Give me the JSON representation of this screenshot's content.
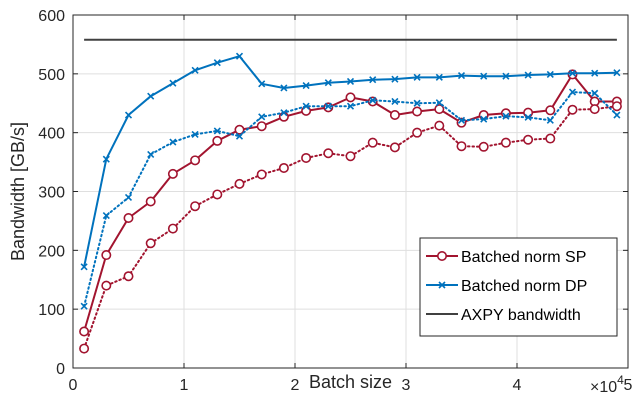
{
  "chart_data": {
    "type": "line",
    "xlabel": "Batch size",
    "ylabel": "Bandwidth [GB/s]",
    "x_exponent_label": "×10",
    "x_exponent_power": "4",
    "xlim": [
      0,
      50000
    ],
    "ylim": [
      0,
      600
    ],
    "xticks": [
      0,
      10000,
      20000,
      30000,
      40000,
      50000
    ],
    "xtick_labels": [
      "0",
      "1",
      "2",
      "3",
      "4",
      "5"
    ],
    "yticks": [
      0,
      100,
      200,
      300,
      400,
      500,
      600
    ],
    "ytick_labels": [
      "0",
      "100",
      "200",
      "300",
      "400",
      "500",
      "600"
    ],
    "grid": true,
    "legend_position": "lower-right",
    "x": [
      1000,
      3000,
      5000,
      7000,
      9000,
      11000,
      13000,
      15000,
      17000,
      19000,
      21000,
      23000,
      25000,
      27000,
      29000,
      31000,
      33000,
      35000,
      37000,
      39000,
      41000,
      43000,
      45000,
      47000,
      49000
    ],
    "series": [
      {
        "name": "Batched norm SP",
        "style": "solid",
        "marker": "circle",
        "color": "#a2142f",
        "legend": true,
        "values": [
          62,
          192,
          255,
          283,
          330,
          353,
          386,
          405,
          411,
          427,
          437,
          443,
          460,
          453,
          430,
          436,
          440,
          417,
          430,
          433,
          434,
          438,
          499,
          453,
          453
        ]
      },
      {
        "name": "Batched norm SP",
        "style": "dotted",
        "marker": "circle",
        "color": "#a2142f",
        "legend": false,
        "values": [
          33,
          140,
          156,
          212,
          237,
          275,
          295,
          313,
          329,
          340,
          357,
          365,
          360,
          383,
          375,
          400,
          412,
          377,
          376,
          383,
          388,
          390,
          439,
          440,
          445
        ]
      },
      {
        "name": "Batched norm DP",
        "style": "solid",
        "marker": "x",
        "color": "#0072bd",
        "legend": true,
        "values": [
          172,
          355,
          430,
          462,
          484,
          506,
          519,
          530,
          483,
          476,
          480,
          485,
          487,
          490,
          491,
          494,
          494,
          497,
          496,
          496,
          498,
          499,
          501,
          501,
          502
        ]
      },
      {
        "name": "Batched norm DP",
        "style": "dotted",
        "marker": "x",
        "color": "#0072bd",
        "legend": false,
        "values": [
          105,
          259,
          290,
          363,
          384,
          397,
          403,
          394,
          427,
          434,
          445,
          445,
          445,
          455,
          453,
          450,
          451,
          421,
          423,
          428,
          426,
          421,
          469,
          467,
          430
        ]
      },
      {
        "name": "AXPY bandwidth",
        "style": "solid",
        "marker": "none",
        "color": "#404040",
        "legend": true,
        "x": [
          1000,
          49000
        ],
        "values": [
          558,
          558
        ]
      }
    ]
  }
}
